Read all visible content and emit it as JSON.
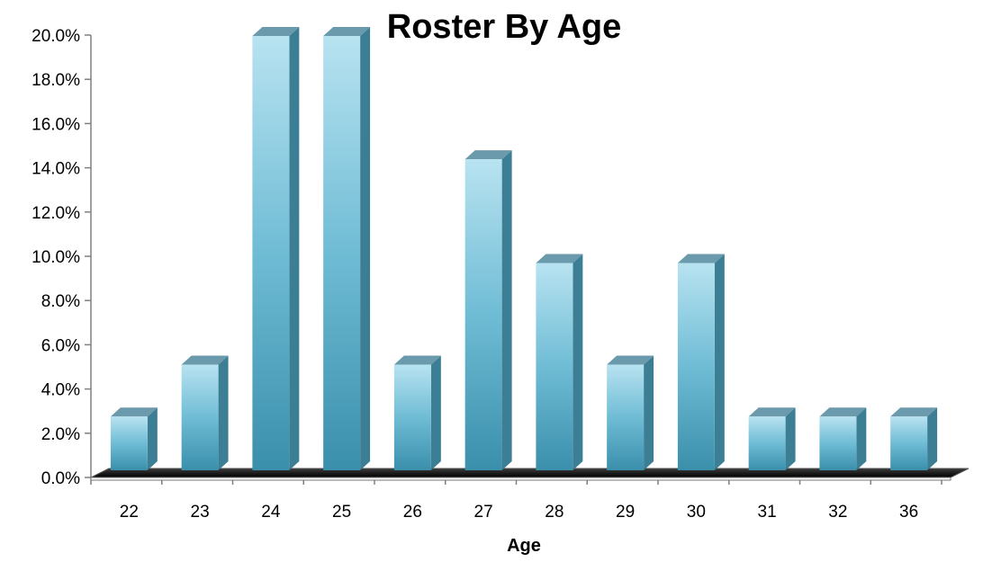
{
  "chart_data": {
    "type": "bar",
    "title": "Roster By Age",
    "xlabel": "Age",
    "ylabel": "",
    "categories": [
      "22",
      "23",
      "24",
      "25",
      "26",
      "27",
      "28",
      "29",
      "30",
      "31",
      "32",
      "36"
    ],
    "values": [
      2.4,
      4.8,
      20.0,
      20.0,
      4.8,
      14.3,
      9.5,
      4.8,
      9.5,
      2.4,
      2.4,
      2.4
    ],
    "ylim": [
      0,
      20
    ],
    "yticks": [
      "0.0%",
      "2.0%",
      "4.0%",
      "6.0%",
      "8.0%",
      "10.0%",
      "12.0%",
      "14.0%",
      "16.0%",
      "18.0%",
      "20.0%"
    ],
    "grid": false,
    "legend": "none",
    "bar_color": "#4aa3bf"
  }
}
